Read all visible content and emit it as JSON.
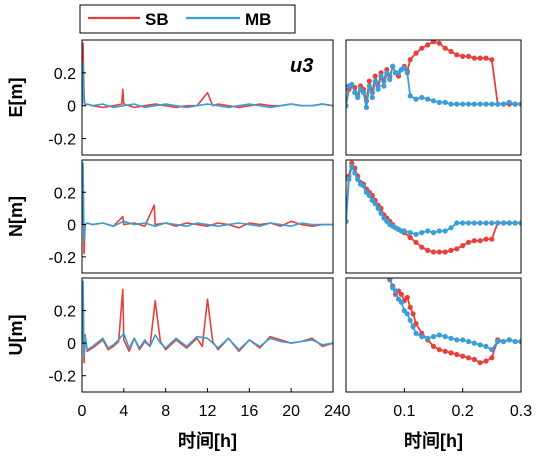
{
  "legend": {
    "entries": [
      {
        "label": "SB",
        "color": "#e8413c"
      },
      {
        "label": "MB",
        "color": "#3a9fd6"
      }
    ]
  },
  "annotation": "u3",
  "chart_data": [
    {
      "type": "line",
      "panel": "E-full",
      "ylabel": "E[m]",
      "xlabel": "",
      "xlim": [
        0,
        24
      ],
      "ylim": [
        -0.3,
        0.4
      ],
      "x_ticks": [],
      "y_ticks": [
        0.2,
        0,
        -0.2
      ],
      "series": [
        {
          "name": "SB",
          "x": [
            0,
            0.1,
            0.2,
            0.3,
            0.5,
            1,
            2,
            3,
            3.8,
            3.9,
            4,
            4.5,
            5,
            6,
            7,
            8,
            9,
            10,
            11,
            12,
            12.5,
            13,
            14,
            15,
            16,
            17,
            18,
            19,
            20,
            21,
            22,
            23,
            24
          ],
          "y": [
            0,
            0.38,
            0.05,
            0,
            0.01,
            0,
            -0.01,
            0,
            0.01,
            0.1,
            0.01,
            0,
            -0.01,
            0,
            0.01,
            0,
            -0.01,
            0,
            0,
            0.08,
            0,
            0.01,
            0,
            -0.01,
            0,
            0.01,
            0,
            0,
            0.01,
            0,
            0,
            0.01,
            0
          ]
        },
        {
          "name": "MB",
          "x": [
            0,
            0.1,
            0.2,
            0.3,
            0.5,
            1,
            2,
            3,
            4,
            5,
            6,
            7,
            8,
            9,
            10,
            11,
            12,
            13,
            14,
            15,
            16,
            17,
            18,
            19,
            20,
            21,
            22,
            23,
            24
          ],
          "y": [
            0,
            0.26,
            0.02,
            0,
            0.01,
            0,
            0.01,
            -0.01,
            0,
            0.01,
            -0.01,
            0,
            0.01,
            0,
            -0.01,
            0,
            0.01,
            0,
            -0.01,
            0,
            0.01,
            0,
            -0.01,
            0,
            0.01,
            0,
            0,
            0.01,
            0
          ]
        }
      ]
    },
    {
      "type": "line",
      "panel": "E-zoom",
      "ylabel": "",
      "xlabel": "",
      "xlim": [
        0,
        0.3
      ],
      "ylim": [
        -0.3,
        0.4
      ],
      "x_ticks": [],
      "y_ticks": [],
      "series": [
        {
          "name": "SB",
          "x": [
            0,
            0.005,
            0.01,
            0.015,
            0.02,
            0.025,
            0.03,
            0.035,
            0.04,
            0.045,
            0.05,
            0.055,
            0.06,
            0.065,
            0.07,
            0.075,
            0.08,
            0.085,
            0.09,
            0.095,
            0.1,
            0.105,
            0.11,
            0.12,
            0.13,
            0.14,
            0.15,
            0.16,
            0.17,
            0.18,
            0.19,
            0.2,
            0.21,
            0.22,
            0.23,
            0.24,
            0.25,
            0.26,
            0.27,
            0.28,
            0.29,
            0.3
          ],
          "y": [
            0,
            0.1,
            0.12,
            0.11,
            0.06,
            0.12,
            0.1,
            0.03,
            0.15,
            0.08,
            0.18,
            0.12,
            0.2,
            0.15,
            0.22,
            0.18,
            0.24,
            0.2,
            0.18,
            0.22,
            0.24,
            0.21,
            0.28,
            0.32,
            0.35,
            0.37,
            0.39,
            0.38,
            0.35,
            0.33,
            0.31,
            0.3,
            0.3,
            0.29,
            0.29,
            0.29,
            0.28,
            0.01,
            0.01,
            0.01,
            0.01,
            0.01
          ]
        },
        {
          "name": "MB",
          "x": [
            0,
            0.005,
            0.01,
            0.015,
            0.02,
            0.025,
            0.03,
            0.035,
            0.04,
            0.045,
            0.05,
            0.055,
            0.06,
            0.065,
            0.07,
            0.075,
            0.08,
            0.085,
            0.09,
            0.095,
            0.1,
            0.105,
            0.11,
            0.12,
            0.13,
            0.14,
            0.15,
            0.16,
            0.17,
            0.18,
            0.19,
            0.2,
            0.21,
            0.22,
            0.23,
            0.24,
            0.25,
            0.26,
            0.27,
            0.28,
            0.29,
            0.3
          ],
          "y": [
            0,
            0.12,
            0.13,
            0.08,
            0.05,
            0.1,
            0.08,
            -0.01,
            0.12,
            0.05,
            0.15,
            0.1,
            0.18,
            0.12,
            0.2,
            0.16,
            0.24,
            0.2,
            0.2,
            0.22,
            0.23,
            0.2,
            0.06,
            0.04,
            0.05,
            0.04,
            0.03,
            0.02,
            0.02,
            0.01,
            0.01,
            0.01,
            0.01,
            0.01,
            0.01,
            0.01,
            0.01,
            0.01,
            0.01,
            0.02,
            0.01,
            0.01
          ]
        }
      ]
    },
    {
      "type": "line",
      "panel": "N-full",
      "ylabel": "N[m]",
      "xlabel": "",
      "xlim": [
        0,
        24
      ],
      "ylim": [
        -0.3,
        0.4
      ],
      "x_ticks": [],
      "y_ticks": [
        0.2,
        0,
        -0.2
      ],
      "series": [
        {
          "name": "SB",
          "x": [
            0,
            0.1,
            0.2,
            0.3,
            0.5,
            1,
            2,
            3,
            3.9,
            4,
            5,
            6,
            6.9,
            7,
            8,
            9,
            10,
            11,
            12,
            13,
            14,
            15,
            16,
            17,
            18,
            19,
            20,
            21,
            22,
            23,
            24
          ],
          "y": [
            0,
            0.3,
            -0.18,
            0,
            0.01,
            0,
            0.01,
            -0.01,
            0.05,
            0,
            0.01,
            -0.01,
            0.12,
            0,
            0.01,
            -0.01,
            0.01,
            0,
            -0.01,
            0.01,
            0,
            -0.02,
            0.01,
            0,
            0.01,
            -0.01,
            0.02,
            0,
            -0.01,
            0,
            0
          ]
        },
        {
          "name": "MB",
          "x": [
            0,
            0.1,
            0.2,
            0.3,
            0.5,
            1,
            2,
            3,
            4,
            5,
            6,
            7,
            8,
            9,
            10,
            11,
            12,
            13,
            14,
            15,
            16,
            17,
            18,
            19,
            20,
            21,
            22,
            23,
            24
          ],
          "y": [
            0,
            0.38,
            -0.1,
            0,
            0.01,
            0,
            0.01,
            -0.01,
            0.02,
            0,
            0.01,
            -0.01,
            0.01,
            0,
            -0.01,
            0.01,
            0,
            -0.01,
            0,
            0.01,
            0,
            -0.01,
            0.01,
            0,
            -0.01,
            0.01,
            0,
            0,
            0
          ]
        }
      ]
    },
    {
      "type": "line",
      "panel": "N-zoom",
      "ylabel": "",
      "xlabel": "",
      "xlim": [
        0,
        0.3
      ],
      "ylim": [
        -0.3,
        0.4
      ],
      "x_ticks": [],
      "y_ticks": [],
      "series": [
        {
          "name": "SB",
          "x": [
            0,
            0.005,
            0.01,
            0.015,
            0.02,
            0.025,
            0.03,
            0.035,
            0.04,
            0.045,
            0.05,
            0.055,
            0.06,
            0.065,
            0.07,
            0.075,
            0.08,
            0.085,
            0.09,
            0.095,
            0.1,
            0.11,
            0.12,
            0.13,
            0.14,
            0.15,
            0.16,
            0.17,
            0.18,
            0.19,
            0.2,
            0.21,
            0.22,
            0.23,
            0.24,
            0.25,
            0.26,
            0.27,
            0.28,
            0.29,
            0.3
          ],
          "y": [
            0.02,
            0.3,
            0.38,
            0.35,
            0.3,
            0.26,
            0.25,
            0.22,
            0.2,
            0.18,
            0.15,
            0.12,
            0.1,
            0.06,
            0.04,
            0.02,
            0,
            -0.02,
            -0.03,
            -0.04,
            -0.05,
            -0.08,
            -0.11,
            -0.14,
            -0.16,
            -0.17,
            -0.17,
            -0.17,
            -0.16,
            -0.15,
            -0.13,
            -0.11,
            -0.1,
            -0.1,
            -0.09,
            -0.09,
            0.01,
            0.01,
            0.01,
            0.01,
            0.01
          ]
        },
        {
          "name": "MB",
          "x": [
            0,
            0.005,
            0.01,
            0.015,
            0.02,
            0.025,
            0.03,
            0.035,
            0.04,
            0.045,
            0.05,
            0.055,
            0.06,
            0.065,
            0.07,
            0.075,
            0.08,
            0.085,
            0.09,
            0.095,
            0.1,
            0.11,
            0.12,
            0.13,
            0.14,
            0.15,
            0.16,
            0.17,
            0.18,
            0.19,
            0.2,
            0.21,
            0.22,
            0.23,
            0.24,
            0.25,
            0.26,
            0.27,
            0.28,
            0.29,
            0.3
          ],
          "y": [
            0.02,
            0.28,
            0.36,
            0.32,
            0.28,
            0.25,
            0.24,
            0.2,
            0.18,
            0.15,
            0.13,
            0.1,
            0.07,
            0.04,
            0.02,
            0,
            -0.01,
            -0.02,
            -0.03,
            -0.04,
            -0.04,
            -0.05,
            -0.06,
            -0.05,
            -0.04,
            -0.05,
            -0.04,
            -0.04,
            -0.02,
            0.01,
            0.01,
            0.01,
            0.01,
            0.01,
            0.01,
            0.01,
            0.01,
            0.01,
            0.01,
            0.01,
            0.01
          ]
        }
      ]
    },
    {
      "type": "line",
      "panel": "U-full",
      "ylabel": "U[m]",
      "xlabel": "时间[h]",
      "xlim": [
        0,
        24
      ],
      "ylim": [
        -0.3,
        0.4
      ],
      "x_ticks": [
        0,
        4,
        8,
        12,
        16,
        20,
        24
      ],
      "y_ticks": [
        0.2,
        0,
        -0.2
      ],
      "series": [
        {
          "name": "SB",
          "x": [
            0,
            0.1,
            0.2,
            0.3,
            0.5,
            1,
            2,
            2.5,
            3,
            3.5,
            3.9,
            4,
            4.5,
            5,
            5.5,
            6,
            6.5,
            7,
            7.5,
            8,
            9,
            10,
            11,
            11.5,
            12,
            12.5,
            13,
            14,
            15,
            16,
            17,
            18,
            19,
            20,
            21,
            22,
            23,
            24
          ],
          "y": [
            0,
            0.32,
            -0.12,
            0.05,
            -0.05,
            -0.03,
            0.02,
            -0.04,
            -0.02,
            0.01,
            0.33,
            0.02,
            -0.05,
            0.03,
            -0.04,
            0.01,
            -0.02,
            0.26,
            0.01,
            -0.04,
            0.02,
            -0.03,
            0.03,
            -0.02,
            0.27,
            0.01,
            -0.04,
            0.03,
            -0.05,
            0.02,
            -0.03,
            0.04,
            0.02,
            0,
            0.01,
            0.03,
            -0.02,
            0
          ]
        },
        {
          "name": "MB",
          "x": [
            0,
            0.1,
            0.2,
            0.3,
            0.5,
            1,
            2,
            2.5,
            3,
            3.5,
            4,
            4.5,
            5,
            5.5,
            6,
            6.5,
            7,
            7.5,
            8,
            9,
            10,
            11,
            12,
            13,
            14,
            15,
            16,
            17,
            18,
            19,
            20,
            21,
            22,
            23,
            24
          ],
          "y": [
            0,
            0.38,
            -0.08,
            0.04,
            -0.04,
            -0.02,
            0.03,
            -0.03,
            -0.01,
            0.02,
            0.06,
            -0.03,
            0.03,
            -0.03,
            0.02,
            -0.02,
            0.05,
            0,
            -0.03,
            0.03,
            -0.02,
            0.04,
            0.03,
            -0.03,
            0.03,
            -0.04,
            0.02,
            -0.02,
            0.03,
            0.01,
            0,
            0.01,
            0.02,
            -0.01,
            0
          ]
        }
      ]
    },
    {
      "type": "line",
      "panel": "U-zoom",
      "ylabel": "",
      "xlabel": "时间[h]",
      "xlim": [
        0,
        0.3
      ],
      "ylim": [
        -0.3,
        0.4
      ],
      "x_ticks": [
        0,
        0.1,
        0.2,
        0.3
      ],
      "y_ticks": [],
      "series": [
        {
          "name": "SB",
          "x": [
            0.075,
            0.08,
            0.085,
            0.09,
            0.095,
            0.1,
            0.105,
            0.11,
            0.115,
            0.12,
            0.13,
            0.14,
            0.15,
            0.16,
            0.17,
            0.18,
            0.19,
            0.2,
            0.21,
            0.22,
            0.23,
            0.24,
            0.25,
            0.26,
            0.27,
            0.28,
            0.29,
            0.3
          ],
          "y": [
            0.39,
            0.35,
            0.3,
            0.32,
            0.3,
            0.26,
            0.28,
            0.22,
            0.18,
            0.12,
            0.06,
            0.02,
            -0.02,
            -0.04,
            -0.05,
            -0.06,
            -0.07,
            -0.08,
            -0.09,
            -0.1,
            -0.12,
            -0.11,
            -0.09,
            0.02,
            0.01,
            0.02,
            0.01,
            0.01
          ]
        },
        {
          "name": "MB",
          "x": [
            0.075,
            0.08,
            0.085,
            0.09,
            0.095,
            0.1,
            0.105,
            0.11,
            0.115,
            0.12,
            0.13,
            0.14,
            0.15,
            0.16,
            0.17,
            0.18,
            0.19,
            0.2,
            0.21,
            0.22,
            0.23,
            0.24,
            0.25,
            0.26,
            0.27,
            0.28,
            0.29,
            0.3
          ],
          "y": [
            0.4,
            0.34,
            0.32,
            0.27,
            0.25,
            0.2,
            0.18,
            0.14,
            0.1,
            0.06,
            0.04,
            0.03,
            0.04,
            0.05,
            0.04,
            0.03,
            0.02,
            0.02,
            0.01,
            0,
            -0.01,
            -0.02,
            -0.04,
            0.01,
            0.01,
            0.02,
            0.01,
            0.01
          ]
        }
      ]
    }
  ]
}
